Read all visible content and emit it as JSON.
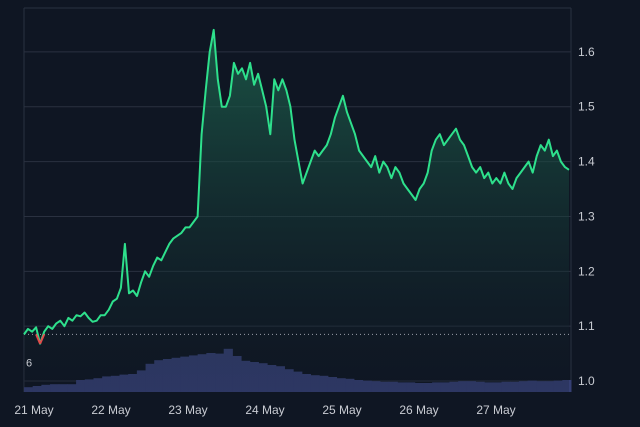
{
  "chart_data": {
    "type": "area",
    "x_ticks": [
      "21 May",
      "22 May",
      "23 May",
      "24 May",
      "25 May",
      "26 May",
      "27 May"
    ],
    "y_ticks": [
      "1.6",
      "1.5",
      "1.4",
      "1.3",
      "1.2",
      "1.1",
      "1.0"
    ],
    "ylim": [
      0.98,
      1.68
    ],
    "grid": true,
    "baseline": {
      "value": 1.085,
      "label": "6"
    },
    "colors": {
      "background": "#0f1623",
      "line": "#2ee08c",
      "fill_top": "#1f6b52",
      "fill_bottom": "#0f1623",
      "drop": "#e14b4b",
      "volume": "#353f73",
      "grid": "#2a3140",
      "baseline": "#9aa0aa"
    },
    "series": [
      {
        "values": [
          1.085,
          1.095,
          1.09,
          1.098,
          1.068,
          1.09,
          1.1,
          1.095,
          1.105,
          1.11,
          1.1,
          1.115,
          1.11,
          1.12,
          1.118,
          1.125,
          1.115,
          1.108,
          1.11,
          1.12,
          1.12,
          1.13,
          1.145,
          1.15,
          1.17,
          1.25,
          1.16,
          1.165,
          1.155,
          1.18,
          1.2,
          1.19,
          1.21,
          1.225,
          1.22,
          1.235,
          1.25,
          1.26,
          1.265,
          1.27,
          1.28,
          1.28,
          1.29,
          1.3,
          1.45,
          1.53,
          1.6,
          1.64,
          1.55,
          1.5,
          1.5,
          1.52,
          1.58,
          1.56,
          1.57,
          1.55,
          1.58,
          1.54,
          1.56,
          1.53,
          1.5,
          1.45,
          1.55,
          1.53,
          1.55,
          1.53,
          1.5,
          1.44,
          1.4,
          1.36,
          1.38,
          1.4,
          1.42,
          1.41,
          1.42,
          1.43,
          1.45,
          1.48,
          1.5,
          1.52,
          1.49,
          1.47,
          1.45,
          1.42,
          1.41,
          1.4,
          1.39,
          1.41,
          1.38,
          1.4,
          1.39,
          1.37,
          1.39,
          1.38,
          1.36,
          1.35,
          1.34,
          1.33,
          1.35,
          1.36,
          1.38,
          1.42,
          1.44,
          1.45,
          1.43,
          1.44,
          1.45,
          1.46,
          1.44,
          1.43,
          1.41,
          1.39,
          1.38,
          1.39,
          1.37,
          1.38,
          1.36,
          1.37,
          1.36,
          1.38,
          1.36,
          1.35,
          1.37,
          1.38,
          1.39,
          1.4,
          1.38,
          1.41,
          1.43,
          1.42,
          1.44,
          1.41,
          1.42,
          1.4,
          1.39,
          1.385
        ]
      }
    ],
    "volume": [
      0.08,
      0.1,
      0.12,
      0.13,
      0.13,
      0.13,
      0.2,
      0.21,
      0.23,
      0.26,
      0.27,
      0.29,
      0.3,
      0.36,
      0.47,
      0.53,
      0.55,
      0.57,
      0.59,
      0.61,
      0.63,
      0.65,
      0.64,
      0.72,
      0.6,
      0.52,
      0.5,
      0.48,
      0.45,
      0.43,
      0.38,
      0.34,
      0.3,
      0.28,
      0.27,
      0.25,
      0.23,
      0.22,
      0.2,
      0.19,
      0.18,
      0.17,
      0.17,
      0.16,
      0.16,
      0.15,
      0.15,
      0.16,
      0.16,
      0.17,
      0.18,
      0.18,
      0.17,
      0.16,
      0.16,
      0.17,
      0.17,
      0.18,
      0.19,
      0.18,
      0.18,
      0.19,
      0.2
    ]
  }
}
